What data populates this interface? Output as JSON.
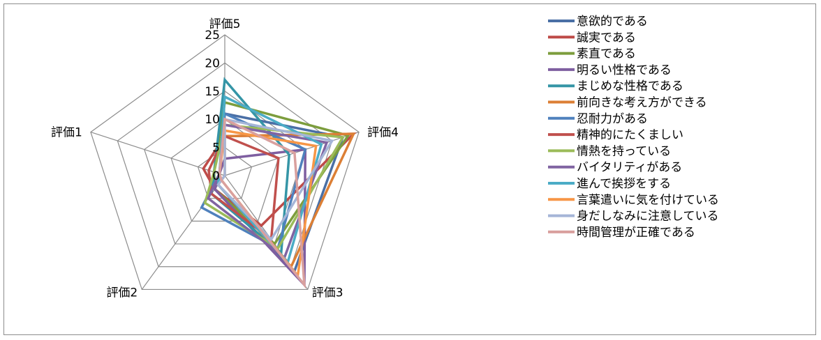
{
  "chart_data": {
    "type": "radar",
    "title": "",
    "axes": [
      "評価1",
      "評価2",
      "評価3",
      "評価4",
      "評価5"
    ],
    "rlim": [
      0,
      25
    ],
    "rticks": [
      "0",
      "5",
      "10",
      "15",
      "20",
      "25"
    ],
    "grid": true,
    "legend_position": "right",
    "series": [
      {
        "name": "意欲的である",
        "color": "#4a6fa5",
        "values": [
          1,
          3,
          21,
          22,
          11
        ]
      },
      {
        "name": "誠実である",
        "color": "#be4b48",
        "values": [
          4,
          3,
          11,
          24,
          7
        ]
      },
      {
        "name": "素直である",
        "color": "#7c9d3d",
        "values": [
          2,
          3,
          15,
          23,
          13
        ]
      },
      {
        "name": "明るい性格である",
        "color": "#7e5ea0",
        "values": [
          1,
          3,
          24,
          15,
          3
        ]
      },
      {
        "name": "まじめな性格である",
        "color": "#3595a6",
        "values": [
          2,
          4,
          17,
          12,
          17
        ]
      },
      {
        "name": "前向きな考え方ができる",
        "color": "#dc7f35",
        "values": [
          0,
          2,
          20,
          24,
          7
        ]
      },
      {
        "name": "忍耐力がある",
        "color": "#4f81bd",
        "values": [
          1,
          7,
          16,
          15,
          11
        ]
      },
      {
        "name": "精神的にたくましい",
        "color": "#c0504d",
        "values": [
          3,
          4,
          14,
          10,
          7
        ]
      },
      {
        "name": "情熱を持っている",
        "color": "#9bbb59",
        "values": [
          2,
          6,
          16,
          22,
          9
        ]
      },
      {
        "name": "バイタリティがある",
        "color": "#8064a2",
        "values": [
          1,
          5,
          18,
          19,
          9
        ]
      },
      {
        "name": "進んで挨拶をする",
        "color": "#4bacc6",
        "values": [
          1,
          2,
          19,
          18,
          14
        ]
      },
      {
        "name": "言葉遣いに気を付けている",
        "color": "#f79646",
        "values": [
          1,
          1,
          22,
          17,
          8
        ]
      },
      {
        "name": "身だしなみに注意している",
        "color": "#a5b5d7",
        "values": [
          0,
          2,
          14,
          20,
          10
        ]
      },
      {
        "name": "時間管理が正確である",
        "color": "#d9a09e",
        "values": [
          1,
          1,
          24,
          13,
          10
        ]
      }
    ]
  }
}
